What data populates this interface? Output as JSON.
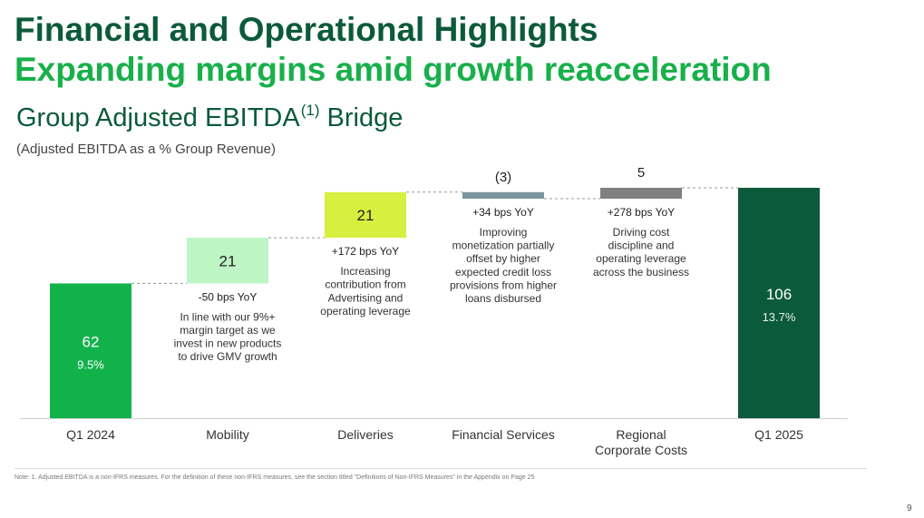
{
  "header": {
    "title": "Financial and Operational Highlights",
    "subtitle": "Expanding margins amid growth reacceleration",
    "chart_title": "Group Adjusted EBITDA",
    "chart_title_sup": "(1)",
    "chart_title_suffix": " Bridge",
    "units_note": "(Adjusted EBITDA as a % Group Revenue)"
  },
  "colors": {
    "dark_green": "#0b5a3b",
    "bright_green": "#18b04a",
    "bar_q1_2024": "#12b24b",
    "bar_mobility": "#bdf5c4",
    "bar_deliveries": "#d7f040",
    "bar_fin_services": "#7b959c",
    "bar_regional": "#808080",
    "bar_q1_2025": "#0b5a3b"
  },
  "chart_data": {
    "type": "bar",
    "subtype": "waterfall",
    "title": "Group Adjusted EBITDA (1) Bridge",
    "ylabel": "Adjusted EBITDA as a % Group Revenue",
    "ylim": [
      0,
      110
    ],
    "categories": [
      "Q1 2024",
      "Mobility",
      "Deliveries",
      "Financial Services",
      "Regional Corporate Costs",
      "Q1 2025"
    ],
    "category_labels": [
      "Q1 2024",
      "Mobility",
      "Deliveries",
      "Financial Services",
      [
        "Regional",
        "Corporate Costs"
      ],
      "Q1 2025"
    ],
    "bars": [
      {
        "kind": "total",
        "start": 0,
        "end": 62,
        "value_label": "62",
        "pct_label": "9.5%",
        "label_pos": "inside"
      },
      {
        "kind": "delta",
        "start": 62,
        "end": 83,
        "value_label": "21",
        "label_pos": "inside"
      },
      {
        "kind": "delta",
        "start": 83,
        "end": 104,
        "value_label": "21",
        "label_pos": "inside"
      },
      {
        "kind": "delta",
        "start": 104,
        "end": 101,
        "value_label": "(3)",
        "label_pos": "above"
      },
      {
        "kind": "delta",
        "start": 101,
        "end": 106,
        "value_label": "5",
        "label_pos": "above"
      },
      {
        "kind": "total",
        "start": 0,
        "end": 106,
        "value_label": "106",
        "pct_label": "13.7%",
        "label_pos": "inside"
      }
    ],
    "annotations": [
      {
        "category": "Mobility",
        "bps": "-50 bps YoY",
        "text": [
          "In line with our 9%+",
          "margin target as we",
          "invest in new products",
          "to drive GMV growth"
        ]
      },
      {
        "category": "Deliveries",
        "bps": "+172 bps YoY",
        "text": [
          "Increasing",
          "contribution from",
          "Advertising and",
          "operating leverage"
        ]
      },
      {
        "category": "Financial Services",
        "bps": "+34 bps YoY",
        "text": [
          "Improving",
          "monetization partially",
          "offset by higher",
          "expected credit loss",
          "provisions from higher",
          "loans disbursed"
        ]
      },
      {
        "category": "Regional Corporate Costs",
        "bps": "+278 bps YoY",
        "text": [
          "Driving cost",
          "discipline and",
          "operating leverage",
          "across the business"
        ]
      }
    ]
  },
  "footer": {
    "note": "Note: 1. Adjusted EBITDA is a non-IFRS measures. For the definition of these non-IFRS measures, see the section titled \"Definitions of Non-IFRS Measures\" in the Appendix on Page 25",
    "page_number": "9"
  }
}
